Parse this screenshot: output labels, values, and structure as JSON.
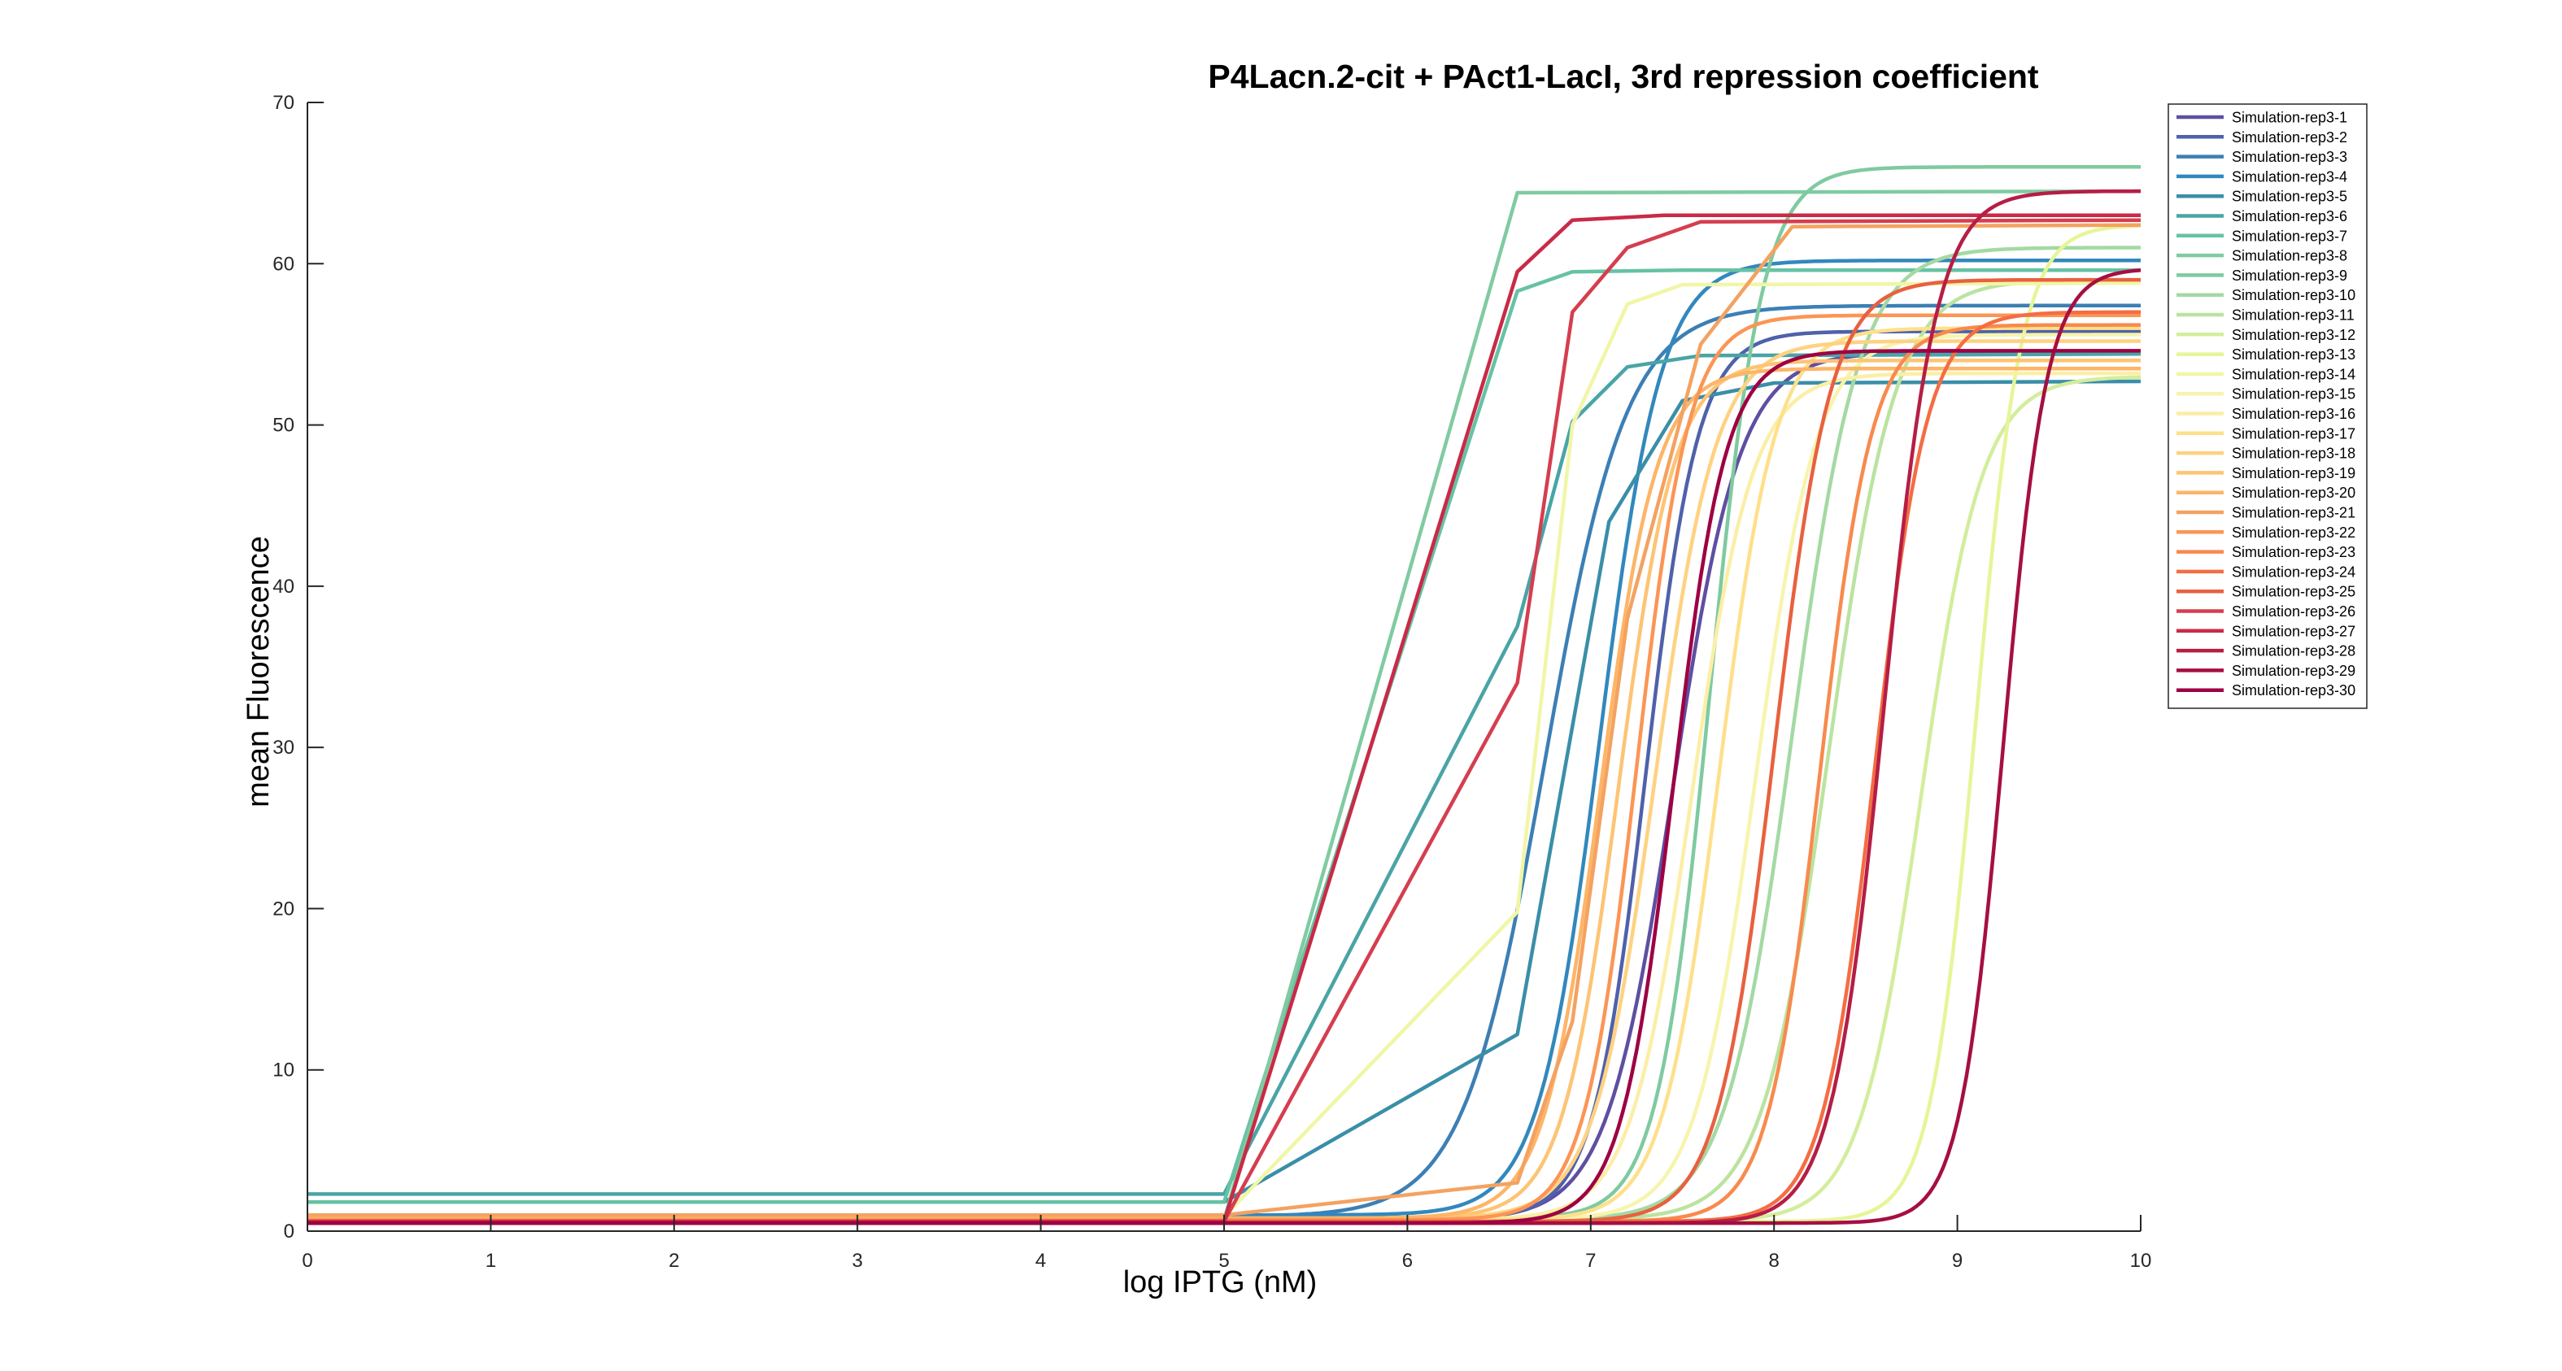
{
  "chart_data": {
    "type": "line",
    "title": "P4Lacn.2-cit + PAct1-LacI, 3rd repression coefficient",
    "xlabel": "log IPTG (nM)",
    "ylabel": "mean Fluorescence",
    "xlim": [
      0,
      10
    ],
    "ylim": [
      0,
      70
    ],
    "xticks": [
      0,
      1,
      2,
      3,
      4,
      5,
      6,
      7,
      8,
      9,
      10
    ],
    "yticks": [
      0,
      10,
      20,
      30,
      40,
      50,
      60,
      70
    ],
    "grid": false,
    "legend_position": "top-right",
    "colormap": "Spectral",
    "series": [
      {
        "name": "Simulation-rep3-1",
        "color": "#5e4fa2",
        "kind": "sig",
        "base": 0.7,
        "top": 54.5,
        "x0": 7.45,
        "k": 5.5
      },
      {
        "name": "Simulation-rep3-2",
        "color": "#4f61aa",
        "kind": "sig",
        "base": 0.8,
        "top": 55.8,
        "x0": 7.3,
        "k": 7.0
      },
      {
        "name": "Simulation-rep3-3",
        "color": "#3c7fb5",
        "kind": "sig",
        "base": 0.9,
        "top": 57.4,
        "x0": 6.75,
        "k": 4.5
      },
      {
        "name": "Simulation-rep3-4",
        "color": "#3288bd",
        "kind": "sig",
        "base": 1.0,
        "top": 60.2,
        "x0": 7.05,
        "k": 6.0
      },
      {
        "name": "Simulation-rep3-5",
        "color": "#3a8ea8",
        "kind": "pts",
        "x": [
          0,
          5,
          6.6,
          7.1,
          7.5,
          8,
          10
        ],
        "y": [
          1.8,
          1.8,
          12.2,
          44,
          51.5,
          52.6,
          52.7
        ]
      },
      {
        "name": "Simulation-rep3-6",
        "color": "#4aa4a6",
        "kind": "pts",
        "x": [
          0,
          5,
          6.6,
          6.9,
          7.2,
          7.6,
          10
        ],
        "y": [
          2.3,
          2.3,
          37.5,
          50.2,
          53.6,
          54.3,
          54.4
        ]
      },
      {
        "name": "Simulation-rep3-7",
        "color": "#66c2a5",
        "kind": "pts",
        "x": [
          0,
          5,
          6.6,
          6.9,
          7.5,
          10
        ],
        "y": [
          1.8,
          1.8,
          58.3,
          59.5,
          59.6,
          59.6
        ]
      },
      {
        "name": "Simulation-rep3-8",
        "color": "#80cba1",
        "kind": "pts",
        "x": [
          0,
          5,
          6.6,
          10
        ],
        "y": [
          0.7,
          0.7,
          64.4,
          64.5
        ]
      },
      {
        "name": "Simulation-rep3-9",
        "color": "#7fcaa0",
        "kind": "sig",
        "base": 0.8,
        "top": 66.0,
        "x0": 7.65,
        "k": 7.0
      },
      {
        "name": "Simulation-rep3-10",
        "color": "#a4d9a4",
        "kind": "sig",
        "base": 0.7,
        "top": 61.0,
        "x0": 8.1,
        "k": 5.5
      },
      {
        "name": "Simulation-rep3-11",
        "color": "#bbe3a0",
        "kind": "sig",
        "base": 0.7,
        "top": 59.0,
        "x0": 8.3,
        "k": 5.5
      },
      {
        "name": "Simulation-rep3-12",
        "color": "#d3ed9c",
        "kind": "sig",
        "base": 0.6,
        "top": 53.0,
        "x0": 8.8,
        "k": 6.0
      },
      {
        "name": "Simulation-rep3-13",
        "color": "#e6f598",
        "kind": "sig",
        "base": 0.6,
        "top": 62.4,
        "x0": 9.1,
        "k": 8.0
      },
      {
        "name": "Simulation-rep3-14",
        "color": "#f1f6a6",
        "kind": "pts",
        "x": [
          0,
          5,
          6.6,
          6.9,
          7.2,
          7.5,
          10
        ],
        "y": [
          0.9,
          0.9,
          19.8,
          50,
          57.5,
          58.7,
          58.8
        ]
      },
      {
        "name": "Simulation-rep3-15",
        "color": "#f7f4ad",
        "kind": "sig",
        "base": 0.7,
        "top": 55.6,
        "x0": 7.9,
        "k": 6.0
      },
      {
        "name": "Simulation-rep3-16",
        "color": "#fbeea6",
        "kind": "sig",
        "base": 0.7,
        "top": 53.2,
        "x0": 7.55,
        "k": 6.0
      },
      {
        "name": "Simulation-rep3-17",
        "color": "#fee08b",
        "kind": "sig",
        "base": 0.7,
        "top": 56.0,
        "x0": 7.7,
        "k": 6.5
      },
      {
        "name": "Simulation-rep3-18",
        "color": "#fed281",
        "kind": "sig",
        "base": 0.8,
        "top": 55.2,
        "x0": 7.35,
        "k": 6.0
      },
      {
        "name": "Simulation-rep3-19",
        "color": "#fdc474",
        "kind": "sig",
        "base": 0.8,
        "top": 54.0,
        "x0": 7.15,
        "k": 6.5
      },
      {
        "name": "Simulation-rep3-20",
        "color": "#fdb567",
        "kind": "sig",
        "base": 0.8,
        "top": 53.5,
        "x0": 7.05,
        "k": 6.5
      },
      {
        "name": "Simulation-rep3-21",
        "color": "#f4a261",
        "kind": "pts",
        "x": [
          0,
          5,
          6.6,
          6.9,
          7.2,
          7.6,
          8.1,
          10
        ],
        "y": [
          1.0,
          1.0,
          3.0,
          13,
          38,
          55,
          62.3,
          62.4
        ]
      },
      {
        "name": "Simulation-rep3-22",
        "color": "#fb9555",
        "kind": "sig",
        "base": 0.7,
        "top": 56.8,
        "x0": 7.25,
        "k": 7.0
      },
      {
        "name": "Simulation-rep3-23",
        "color": "#f88a4d",
        "kind": "sig",
        "base": 0.6,
        "top": 56.2,
        "x0": 8.25,
        "k": 7.0
      },
      {
        "name": "Simulation-rep3-24",
        "color": "#f46d43",
        "kind": "sig",
        "base": 0.6,
        "top": 57.0,
        "x0": 8.55,
        "k": 7.0
      },
      {
        "name": "Simulation-rep3-25",
        "color": "#e8613f",
        "kind": "sig",
        "base": 0.6,
        "top": 59.0,
        "x0": 8.0,
        "k": 6.5
      },
      {
        "name": "Simulation-rep3-26",
        "color": "#d53e4f",
        "kind": "pts",
        "x": [
          0,
          5,
          6.6,
          6.9,
          7.2,
          7.6,
          10
        ],
        "y": [
          0.6,
          0.6,
          34,
          57,
          61,
          62.6,
          62.7
        ]
      },
      {
        "name": "Simulation-rep3-27",
        "color": "#c92a46",
        "kind": "pts",
        "x": [
          0,
          5,
          6.6,
          6.9,
          7.4,
          10
        ],
        "y": [
          0.6,
          0.6,
          59.5,
          62.7,
          63.0,
          63.0
        ]
      },
      {
        "name": "Simulation-rep3-28",
        "color": "#b51e45",
        "kind": "sig",
        "base": 0.5,
        "top": 64.5,
        "x0": 8.6,
        "k": 7.0
      },
      {
        "name": "Simulation-rep3-29",
        "color": "#a50f41",
        "kind": "sig",
        "base": 0.5,
        "top": 59.7,
        "x0": 9.25,
        "k": 8.5
      },
      {
        "name": "Simulation-rep3-30",
        "color": "#9e0142",
        "kind": "sig",
        "base": 0.5,
        "top": 54.6,
        "x0": 7.45,
        "k": 7.0
      }
    ]
  }
}
